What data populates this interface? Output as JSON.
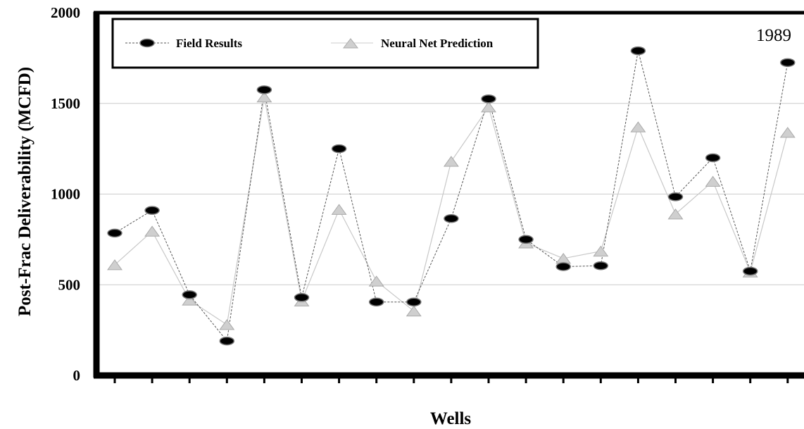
{
  "chart_data": {
    "type": "line",
    "title": "",
    "annotation": "1989",
    "xlabel": "Wells",
    "ylabel": "Post-Frac Deliverability (MCFD)",
    "ylim": [
      0,
      2000
    ],
    "yticks": [
      "0",
      "500",
      "1000",
      "1500",
      "2000"
    ],
    "grid": true,
    "legend_position": "top-left",
    "x": [
      1,
      2,
      3,
      4,
      5,
      6,
      7,
      8,
      9,
      10,
      11,
      12,
      13,
      14,
      15,
      16,
      17,
      18,
      19
    ],
    "series": [
      {
        "name": "Field Results",
        "marker": "ellipse",
        "color": "#000000",
        "values": [
          785,
          910,
          445,
          190,
          1575,
          430,
          1250,
          405,
          405,
          865,
          1525,
          750,
          600,
          605,
          1790,
          985,
          1200,
          575,
          1725
        ]
      },
      {
        "name": "Neural Net Prediction",
        "marker": "triangle",
        "color": "#bbbbbb",
        "values": [
          610,
          795,
          415,
          280,
          1535,
          410,
          915,
          520,
          355,
          1180,
          1480,
          730,
          645,
          685,
          1370,
          890,
          1070,
          570,
          1340
        ]
      }
    ]
  }
}
